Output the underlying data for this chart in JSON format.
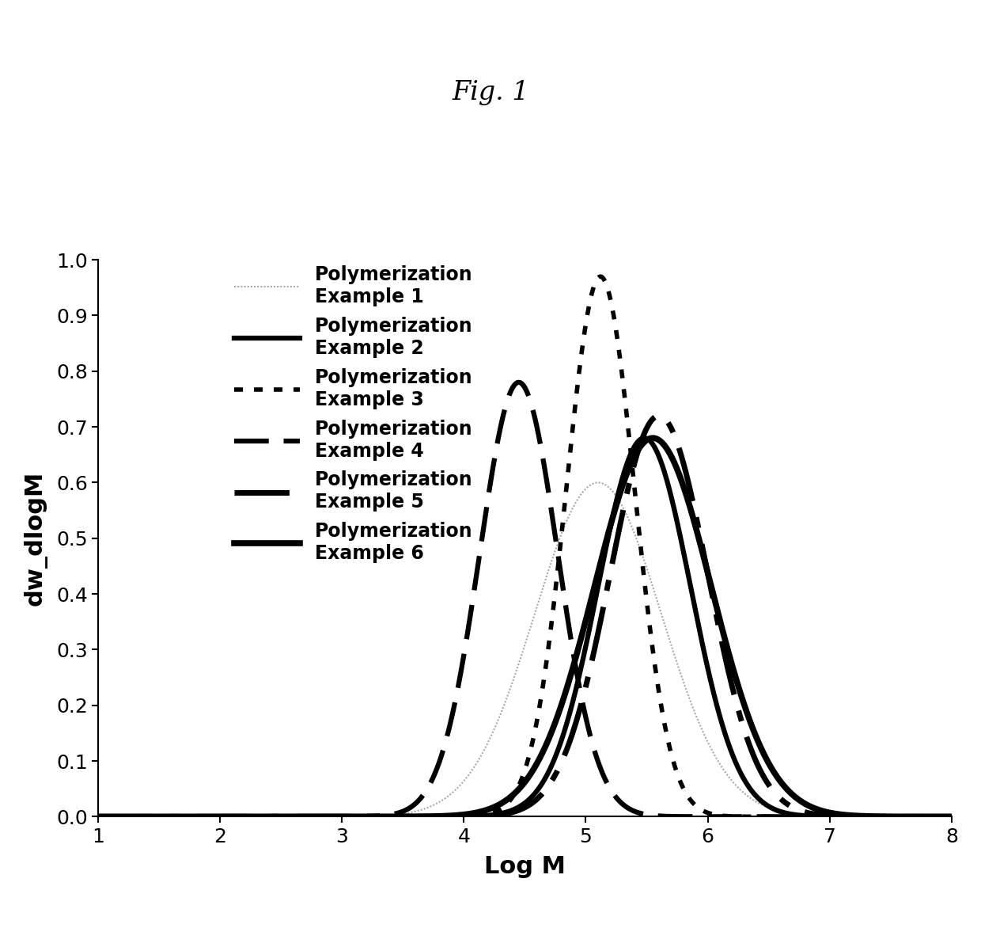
{
  "title": "Fig. 1",
  "xlabel": "Log M",
  "ylabel": "dw_dlogM",
  "xlim": [
    1,
    8
  ],
  "ylim": [
    0,
    1.0
  ],
  "xticks": [
    1,
    2,
    3,
    4,
    5,
    6,
    7,
    8
  ],
  "yticks": [
    0,
    0.1,
    0.2,
    0.3,
    0.4,
    0.5,
    0.6,
    0.7,
    0.8,
    0.9,
    1
  ],
  "background_color": "#ffffff",
  "series": [
    {
      "label": "Polymerization\nExample 1",
      "color": "#aaaaaa",
      "linewidth": 1.5,
      "linestyle_key": "thin_solid",
      "peak": 5.1,
      "sigma": 0.52,
      "amplitude": 0.6
    },
    {
      "label": "Polymerization\nExample 2",
      "color": "#000000",
      "linewidth": 4.5,
      "linestyle_key": "solid",
      "peak": 5.48,
      "sigma": 0.38,
      "amplitude": 0.68
    },
    {
      "label": "Polymerization\nExample 3",
      "color": "#000000",
      "linewidth": 4.0,
      "linestyle_key": "dotted",
      "peak": 5.12,
      "sigma": 0.28,
      "amplitude": 0.97
    },
    {
      "label": "Polymerization\nExample 4",
      "color": "#000000",
      "linewidth": 4.5,
      "linestyle_key": "dashed",
      "peak": 4.45,
      "sigma": 0.32,
      "amplitude": 0.78
    },
    {
      "label": "Polymerization\nExample 5",
      "color": "#000000",
      "linewidth": 5.0,
      "linestyle_key": "long_dashdot",
      "peak": 5.6,
      "sigma": 0.4,
      "amplitude": 0.72
    },
    {
      "label": "Polymerization\nExample 6",
      "color": "#000000",
      "linewidth": 5.5,
      "linestyle_key": "solid",
      "peak": 5.55,
      "sigma": 0.48,
      "amplitude": 0.68
    }
  ],
  "legend_linestyles": {
    "thin_solid": [
      1,
      1
    ],
    "solid": [],
    "dotted": [
      2,
      3
    ],
    "dashed": [
      8,
      4
    ],
    "long_dashdot": [
      12,
      4,
      2,
      4
    ]
  }
}
